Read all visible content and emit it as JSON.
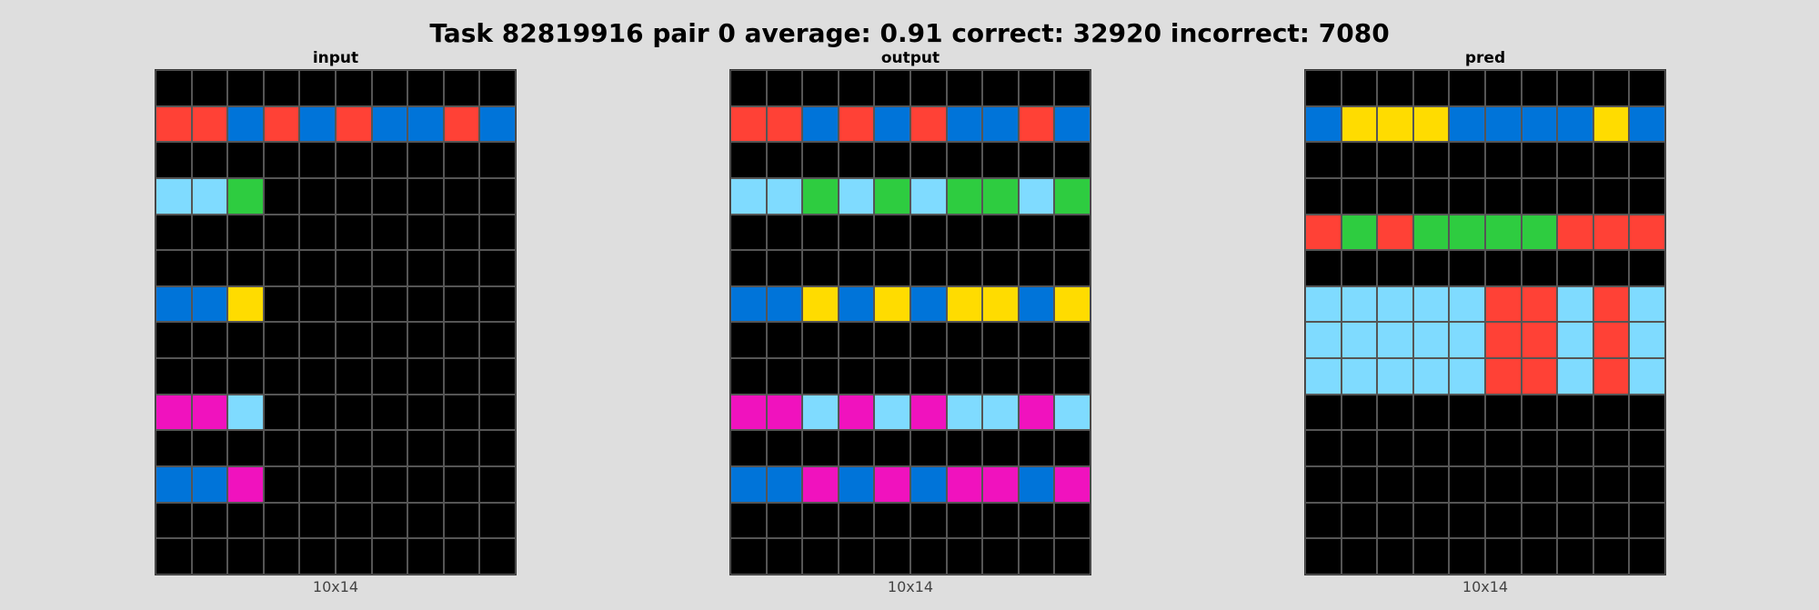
{
  "title": "Task 82819916 pair 0 average: 0.91 correct: 32920 incorrect: 7080",
  "palette": {
    "0": "#000000",
    "1": "#0074D9",
    "2": "#FF4136",
    "3": "#2ECC40",
    "4": "#FFDC00",
    "6": "#F012BE",
    "8": "#7FDBFF"
  },
  "panels": [
    {
      "label": "input",
      "dims": "10x14",
      "grid": [
        [
          0,
          0,
          0,
          0,
          0,
          0,
          0,
          0,
          0,
          0
        ],
        [
          2,
          2,
          1,
          2,
          1,
          2,
          1,
          1,
          2,
          1
        ],
        [
          0,
          0,
          0,
          0,
          0,
          0,
          0,
          0,
          0,
          0
        ],
        [
          8,
          8,
          3,
          0,
          0,
          0,
          0,
          0,
          0,
          0
        ],
        [
          0,
          0,
          0,
          0,
          0,
          0,
          0,
          0,
          0,
          0
        ],
        [
          0,
          0,
          0,
          0,
          0,
          0,
          0,
          0,
          0,
          0
        ],
        [
          1,
          1,
          4,
          0,
          0,
          0,
          0,
          0,
          0,
          0
        ],
        [
          0,
          0,
          0,
          0,
          0,
          0,
          0,
          0,
          0,
          0
        ],
        [
          0,
          0,
          0,
          0,
          0,
          0,
          0,
          0,
          0,
          0
        ],
        [
          6,
          6,
          8,
          0,
          0,
          0,
          0,
          0,
          0,
          0
        ],
        [
          0,
          0,
          0,
          0,
          0,
          0,
          0,
          0,
          0,
          0
        ],
        [
          1,
          1,
          6,
          0,
          0,
          0,
          0,
          0,
          0,
          0
        ],
        [
          0,
          0,
          0,
          0,
          0,
          0,
          0,
          0,
          0,
          0
        ],
        [
          0,
          0,
          0,
          0,
          0,
          0,
          0,
          0,
          0,
          0
        ]
      ]
    },
    {
      "label": "output",
      "dims": "10x14",
      "grid": [
        [
          0,
          0,
          0,
          0,
          0,
          0,
          0,
          0,
          0,
          0
        ],
        [
          2,
          2,
          1,
          2,
          1,
          2,
          1,
          1,
          2,
          1
        ],
        [
          0,
          0,
          0,
          0,
          0,
          0,
          0,
          0,
          0,
          0
        ],
        [
          8,
          8,
          3,
          8,
          3,
          8,
          3,
          3,
          8,
          3
        ],
        [
          0,
          0,
          0,
          0,
          0,
          0,
          0,
          0,
          0,
          0
        ],
        [
          0,
          0,
          0,
          0,
          0,
          0,
          0,
          0,
          0,
          0
        ],
        [
          1,
          1,
          4,
          1,
          4,
          1,
          4,
          4,
          1,
          4
        ],
        [
          0,
          0,
          0,
          0,
          0,
          0,
          0,
          0,
          0,
          0
        ],
        [
          0,
          0,
          0,
          0,
          0,
          0,
          0,
          0,
          0,
          0
        ],
        [
          6,
          6,
          8,
          6,
          8,
          6,
          8,
          8,
          6,
          8
        ],
        [
          0,
          0,
          0,
          0,
          0,
          0,
          0,
          0,
          0,
          0
        ],
        [
          1,
          1,
          6,
          1,
          6,
          1,
          6,
          6,
          1,
          6
        ],
        [
          0,
          0,
          0,
          0,
          0,
          0,
          0,
          0,
          0,
          0
        ],
        [
          0,
          0,
          0,
          0,
          0,
          0,
          0,
          0,
          0,
          0
        ]
      ]
    },
    {
      "label": "pred",
      "dims": "10x14",
      "grid": [
        [
          0,
          0,
          0,
          0,
          0,
          0,
          0,
          0,
          0,
          0
        ],
        [
          1,
          4,
          4,
          4,
          1,
          1,
          1,
          1,
          4,
          1
        ],
        [
          0,
          0,
          0,
          0,
          0,
          0,
          0,
          0,
          0,
          0
        ],
        [
          0,
          0,
          0,
          0,
          0,
          0,
          0,
          0,
          0,
          0
        ],
        [
          2,
          3,
          2,
          3,
          3,
          3,
          3,
          2,
          2,
          2
        ],
        [
          0,
          0,
          0,
          0,
          0,
          0,
          0,
          0,
          0,
          0
        ],
        [
          8,
          8,
          8,
          8,
          8,
          2,
          2,
          8,
          2,
          8
        ],
        [
          8,
          8,
          8,
          8,
          8,
          2,
          2,
          8,
          2,
          8
        ],
        [
          8,
          8,
          8,
          8,
          8,
          2,
          2,
          8,
          2,
          8
        ],
        [
          0,
          0,
          0,
          0,
          0,
          0,
          0,
          0,
          0,
          0
        ],
        [
          0,
          0,
          0,
          0,
          0,
          0,
          0,
          0,
          0,
          0
        ],
        [
          0,
          0,
          0,
          0,
          0,
          0,
          0,
          0,
          0,
          0
        ],
        [
          0,
          0,
          0,
          0,
          0,
          0,
          0,
          0,
          0,
          0
        ],
        [
          0,
          0,
          0,
          0,
          0,
          0,
          0,
          0,
          0,
          0
        ]
      ]
    }
  ]
}
